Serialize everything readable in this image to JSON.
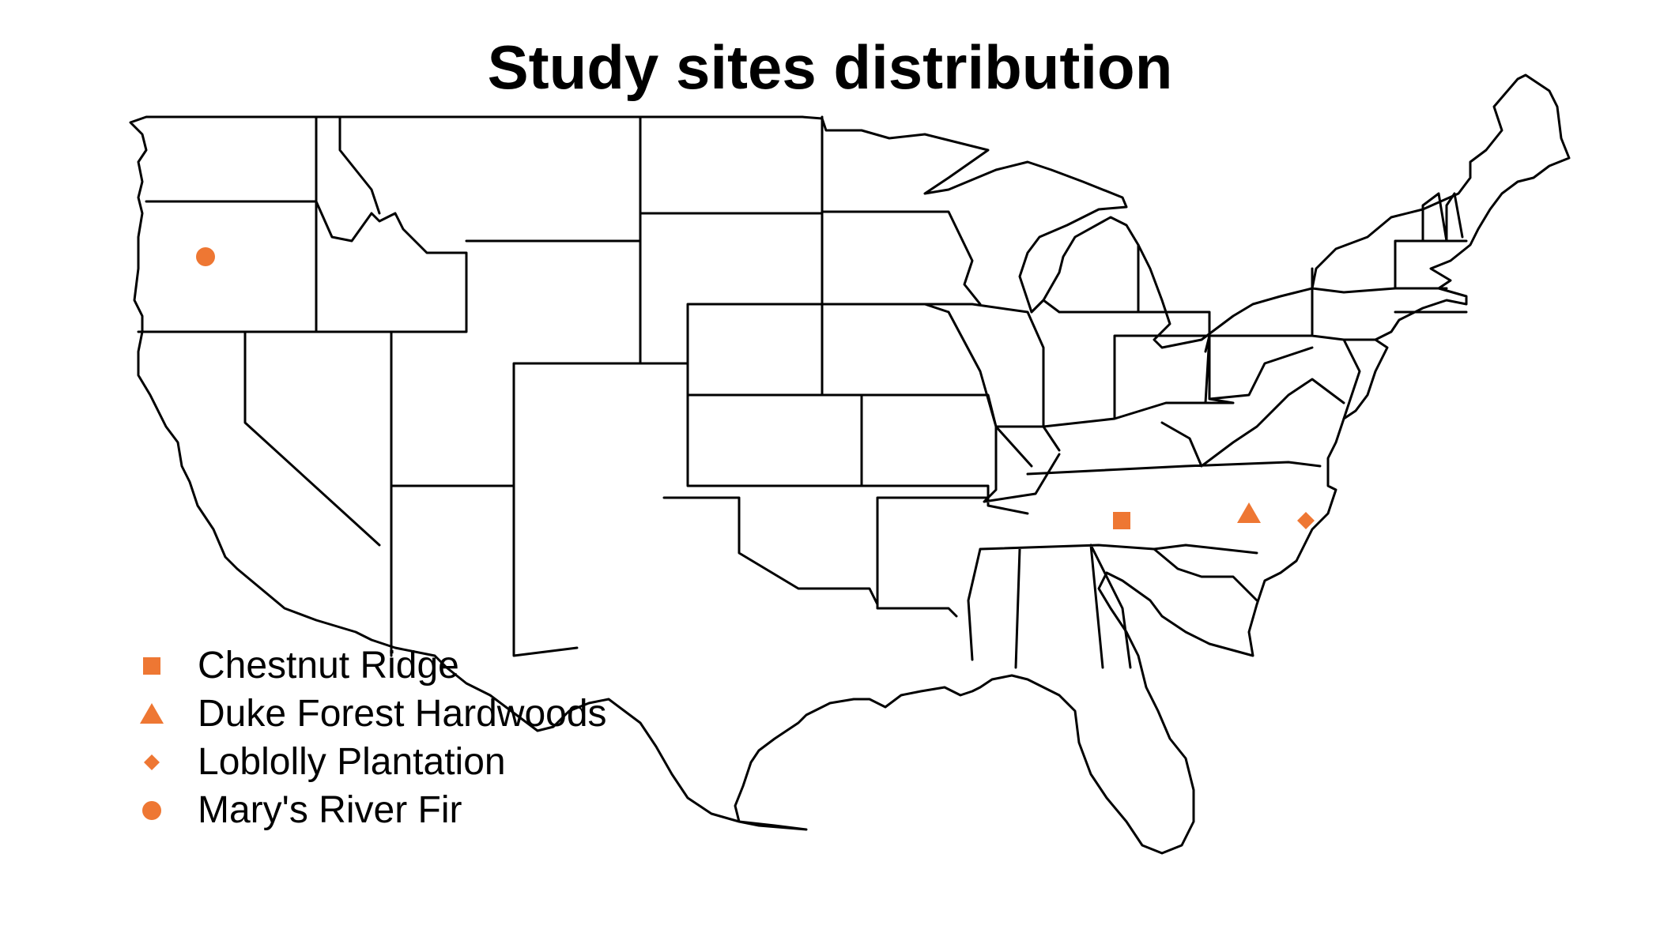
{
  "map": {
    "title": "Study sites distribution",
    "region": "Contiguous United States (state boundaries)",
    "marker_color": "#EE7733",
    "outline_color": "#000000"
  },
  "legend": [
    {
      "label": "Chestnut Ridge",
      "symbol": "square"
    },
    {
      "label": "Duke Forest Hardwoods",
      "symbol": "triangle"
    },
    {
      "label": "Loblolly Plantation",
      "symbol": "diamond"
    },
    {
      "label": "Mary's River Fir",
      "symbol": "circle"
    }
  ],
  "sites": [
    {
      "name": "Chestnut Ridge",
      "symbol": "square",
      "lon": -84.3,
      "lat": 35.96
    },
    {
      "name": "Duke Forest Hardwoods",
      "symbol": "triangle",
      "lon": -79.1,
      "lat": 35.97
    },
    {
      "name": "Loblolly Plantation",
      "symbol": "diamond",
      "lon": -77.0,
      "lat": 35.8
    },
    {
      "name": "Mary's River Fir",
      "symbol": "circle",
      "lon": -123.5,
      "lat": 44.6
    }
  ]
}
